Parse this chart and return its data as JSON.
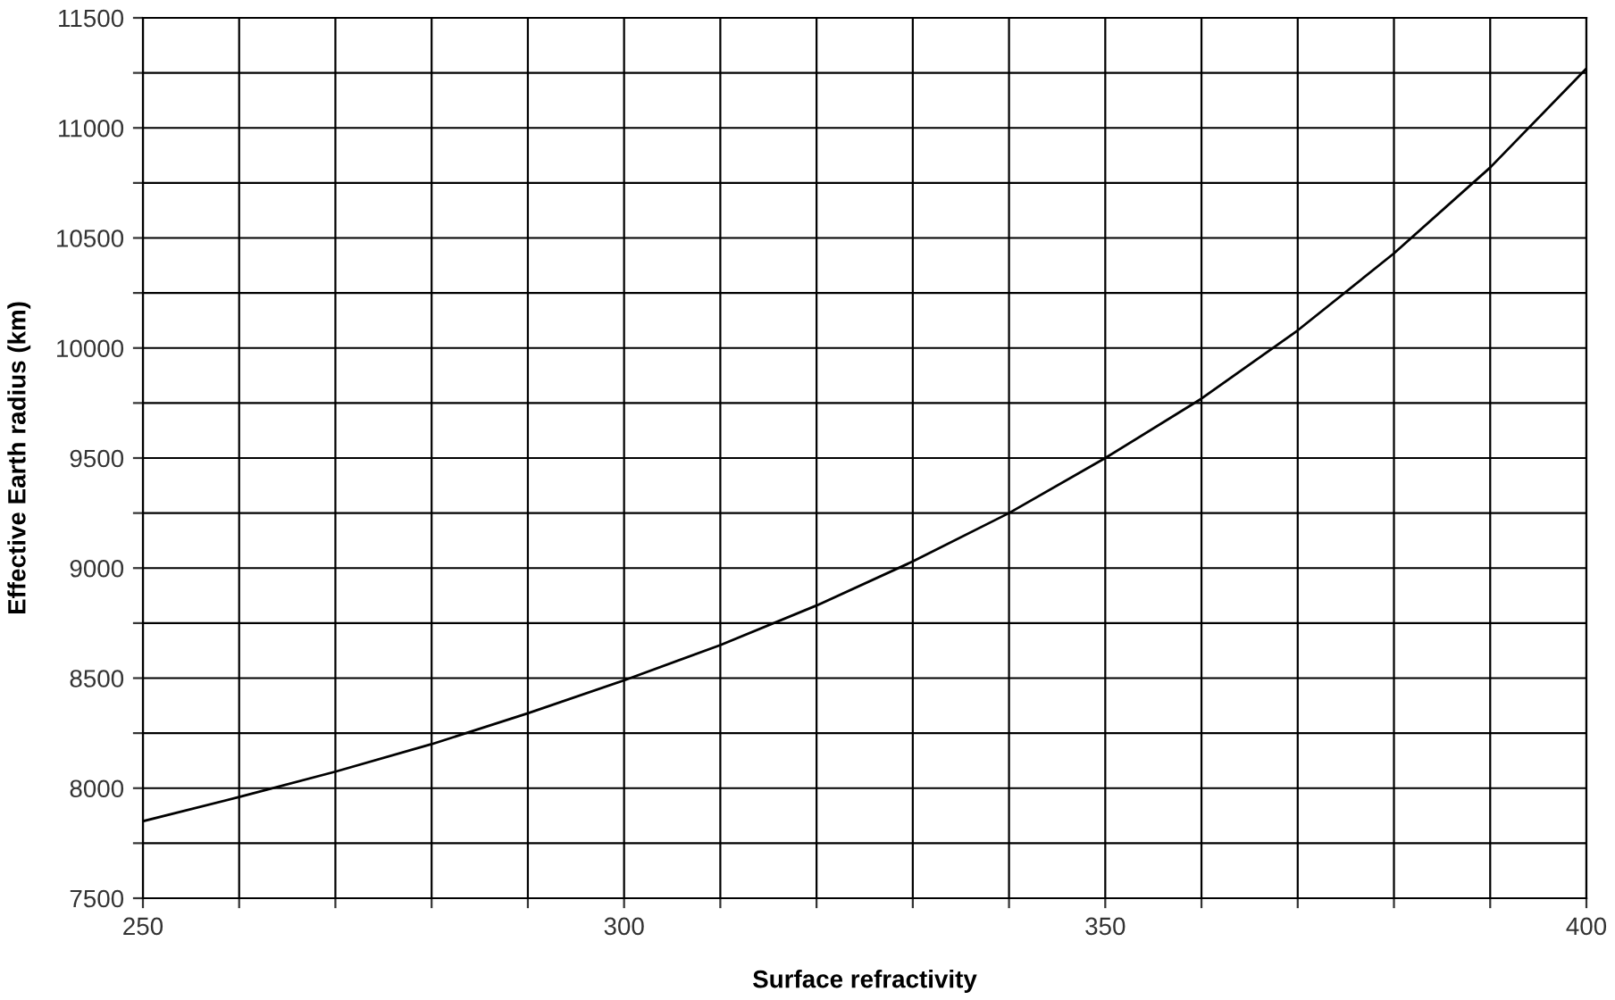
{
  "chart_data": {
    "type": "line",
    "xlabel": "Surface refractivity",
    "ylabel": "Effective Earth radius (km)",
    "x": [
      250,
      260,
      270,
      280,
      290,
      300,
      310,
      320,
      330,
      340,
      350,
      360,
      370,
      380,
      390,
      400
    ],
    "series": [
      {
        "color": "#000000",
        "values": [
          7850,
          7960,
          8075,
          8200,
          8340,
          8490,
          8650,
          8830,
          9030,
          9250,
          9500,
          9770,
          10080,
          10430,
          10820,
          11270
        ]
      }
    ],
    "xlim": [
      250,
      400
    ],
    "xticks": [
      250,
      {
        "value": 260,
        "label": null
      },
      {
        "value": 270,
        "label": null
      },
      {
        "value": 280,
        "label": null
      },
      {
        "value": 290,
        "label": null
      },
      300,
      {
        "value": 310,
        "label": null
      },
      {
        "value": 320,
        "label": null
      },
      {
        "value": 330,
        "label": null
      },
      {
        "value": 340,
        "label": null
      },
      350,
      {
        "value": 360,
        "label": null
      },
      {
        "value": 370,
        "label": null
      },
      {
        "value": 380,
        "label": null
      },
      {
        "value": 390,
        "label": null
      },
      400
    ],
    "ylim": [
      7500,
      11500
    ],
    "yticks": [
      7500,
      {
        "value": 7750,
        "label": null
      },
      8000,
      {
        "value": 8250,
        "label": null
      },
      8500,
      {
        "value": 8750,
        "label": null
      },
      9000,
      {
        "value": 9250,
        "label": null
      },
      9500,
      {
        "value": 9750,
        "label": null
      },
      10000,
      {
        "value": 10250,
        "label": null
      },
      10500,
      {
        "value": 10750,
        "label": null
      },
      11000,
      {
        "value": 11250,
        "label": null
      },
      11500
    ],
    "grid": true,
    "marker": "none",
    "line_style": "solid"
  }
}
